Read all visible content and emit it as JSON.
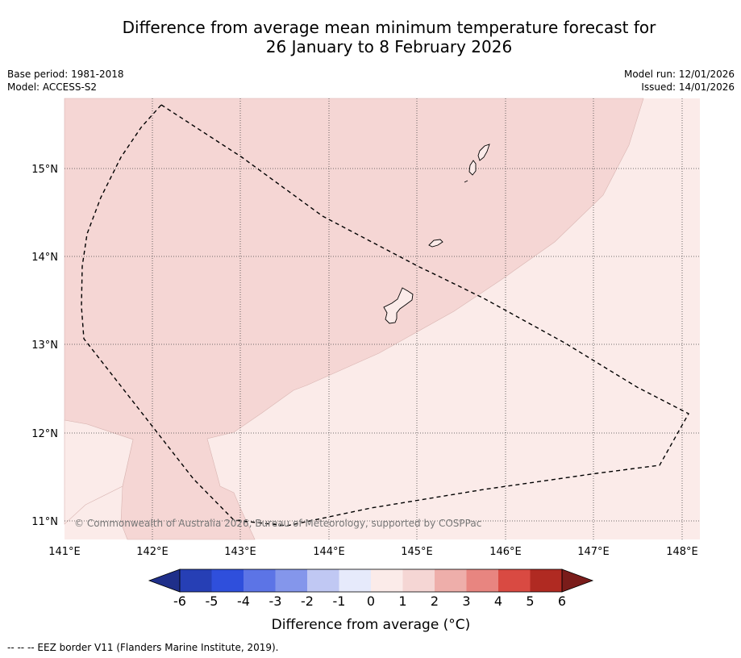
{
  "header": {
    "title_line1": "Difference from average mean minimum temperature forecast for",
    "title_line2": "26 January to 8 February 2026",
    "base_period": "Base period: 1981-2018",
    "model": "Model: ACCESS-S2",
    "model_run": "Model run: 12/01/2026",
    "issued": "Issued: 14/01/2026"
  },
  "map": {
    "lon_ticks": [
      "141°E",
      "142°E",
      "143°E",
      "144°E",
      "145°E",
      "146°E",
      "147°E",
      "148°E"
    ],
    "lat_ticks": [
      "15°N",
      "14°N",
      "13°N",
      "12°N",
      "11°N"
    ],
    "copyright": "© Commonwealth of Australia 2026, Bureau of Meteorology, supported by COSPPac",
    "categories": {
      "anomaly_1_to_2": {
        "color": "#f5d6d4"
      },
      "anomaly_0_to_1": {
        "color": "#fbebe9"
      }
    }
  },
  "colorbar": {
    "ticks": [
      "-6",
      "-5",
      "-4",
      "-3",
      "-2",
      "-1",
      "0",
      "1",
      "2",
      "3",
      "4",
      "5",
      "6"
    ],
    "colors": [
      "#1f2f8a",
      "#263fb5",
      "#2f4fdc",
      "#5c74e6",
      "#8496eb",
      "#c0c8f3",
      "#e6eafb",
      "#fbebe9",
      "#f5d6d4",
      "#eeaeaa",
      "#e88580",
      "#d94a42",
      "#b02a22",
      "#7a1c1a"
    ],
    "label": "Difference from average (°C)"
  },
  "footnote": "--  --  -- EEZ border V11 (Flanders Marine Institute, 2019)."
}
